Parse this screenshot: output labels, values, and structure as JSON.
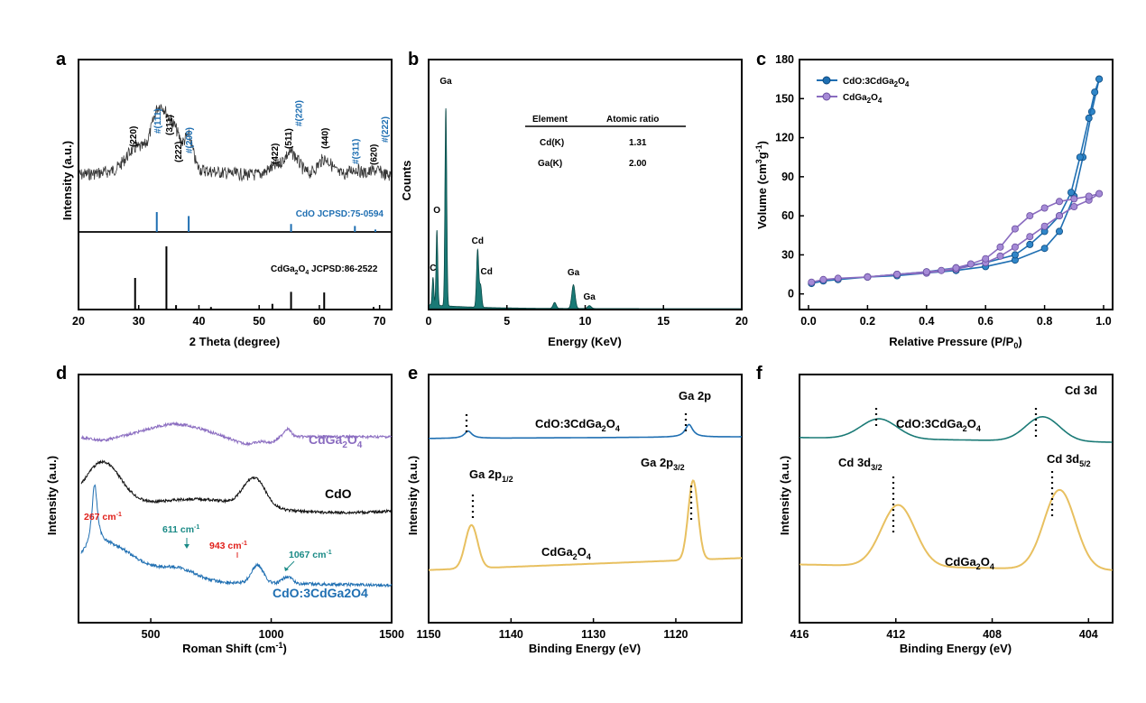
{
  "chart_data": [
    {
      "panel": "a",
      "type": "line",
      "xlabel": "2 Theta (degree)",
      "ylabel": "Intensity (a.u.)",
      "xlim": [
        20,
        72
      ],
      "xticks": [
        20,
        30,
        40,
        50,
        60,
        70
      ],
      "peak_labels": [
        {
          "x": 29,
          "text": "(220)",
          "color": "#000000"
        },
        {
          "x": 33,
          "text": "#(111)",
          "color": "#1f6fb2"
        },
        {
          "x": 35,
          "text": "(311)",
          "color": "#000000"
        },
        {
          "x": 36.5,
          "text": "(222)",
          "color": "#000000"
        },
        {
          "x": 38.3,
          "text": "#(200)",
          "color": "#1f6fb2"
        },
        {
          "x": 52.5,
          "text": "(422)",
          "color": "#000000"
        },
        {
          "x": 54.8,
          "text": "(511)",
          "color": "#000000"
        },
        {
          "x": 56.5,
          "text": "#(220)",
          "color": "#1f6fb2"
        },
        {
          "x": 60.8,
          "text": "(440)",
          "color": "#000000"
        },
        {
          "x": 65.9,
          "text": "#(311)",
          "color": "#1f6fb2"
        },
        {
          "x": 68.9,
          "text": "(620)",
          "color": "#000000"
        },
        {
          "x": 70.8,
          "text": "#(222)",
          "color": "#1f6fb2"
        }
      ],
      "ref_cdo": {
        "label": "CdO JCPSD:75-0594",
        "color": "#1f6fb2",
        "lines": [
          {
            "x": 33.0,
            "h": 1.0
          },
          {
            "x": 38.3,
            "h": 0.8
          },
          {
            "x": 55.3,
            "h": 0.4
          },
          {
            "x": 65.9,
            "h": 0.3
          },
          {
            "x": 69.3,
            "h": 0.12
          }
        ]
      },
      "ref_cdga2o4": {
        "label_main": "CdGa",
        "sub1": "2",
        "mid": "O",
        "sub2": "4",
        "label_tail": " JCPSD:86-2522",
        "color": "#000000",
        "lines": [
          {
            "x": 29.4,
            "h": 0.5
          },
          {
            "x": 34.6,
            "h": 1.0
          },
          {
            "x": 36.2,
            "h": 0.07
          },
          {
            "x": 42.0,
            "h": 0.04
          },
          {
            "x": 52.2,
            "h": 0.09
          },
          {
            "x": 55.3,
            "h": 0.28
          },
          {
            "x": 60.8,
            "h": 0.27
          },
          {
            "x": 69.0,
            "h": 0.04
          }
        ]
      }
    },
    {
      "panel": "b",
      "type": "area",
      "xlabel": "Energy (KeV)",
      "ylabel": "Counts",
      "xlim": [
        0,
        20
      ],
      "xticks": [
        0,
        5,
        10,
        15,
        20
      ],
      "color": "#1a7a76",
      "peaks": [
        {
          "x": 0.28,
          "h": 0.14,
          "label": "C"
        },
        {
          "x": 0.53,
          "h": 0.38,
          "label": "O"
        },
        {
          "x": 1.1,
          "h": 1.0,
          "label": "Ga"
        },
        {
          "x": 3.13,
          "h": 0.29,
          "label": "Cd"
        },
        {
          "x": 3.32,
          "h": 0.11,
          "label": "Cd"
        },
        {
          "x": 8.05,
          "h": 0.03,
          "label": ""
        },
        {
          "x": 9.25,
          "h": 0.12,
          "label": "Ga"
        },
        {
          "x": 10.27,
          "h": 0.015,
          "label": "Ga"
        }
      ],
      "table": {
        "headers": [
          "Element",
          "Atomic ratio"
        ],
        "rows": [
          [
            "Cd(K)",
            "1.31"
          ],
          [
            "Ga(K)",
            "2.00"
          ]
        ]
      }
    },
    {
      "panel": "c",
      "type": "line",
      "xlabel": "Relative Pressure (P/P",
      "xlabel_sub": "0",
      "xlabel_end": ")",
      "ylabel": "Volume (cm",
      "ylabel_sup1": "3",
      "ylabel_mid": "g",
      "ylabel_sup2": "-1",
      "ylabel_end": ")",
      "xlim": [
        0,
        1
      ],
      "ylim": [
        -12,
        180
      ],
      "xticks": [
        "0.0",
        "0.2",
        "0.4",
        "0.6",
        "0.8",
        "1.0"
      ],
      "yticks": [
        "0",
        "30",
        "60",
        "90",
        "120",
        "150",
        "180"
      ],
      "series": [
        {
          "name": "CdO:3CdGa2O4",
          "color": "#1f6fb2",
          "ads": [
            [
              0.01,
              8
            ],
            [
              0.05,
              10
            ],
            [
              0.1,
              11
            ],
            [
              0.2,
              13
            ],
            [
              0.3,
              14
            ],
            [
              0.4,
              16
            ],
            [
              0.5,
              18
            ],
            [
              0.6,
              21
            ],
            [
              0.7,
              26
            ],
            [
              0.8,
              35
            ],
            [
              0.85,
              48
            ],
            [
              0.9,
              75
            ],
            [
              0.93,
              105
            ],
            [
              0.96,
              140
            ],
            [
              0.985,
              165
            ]
          ],
          "des": [
            [
              0.985,
              165
            ],
            [
              0.97,
              155
            ],
            [
              0.95,
              135
            ],
            [
              0.92,
              105
            ],
            [
              0.89,
              78
            ],
            [
              0.85,
              60
            ],
            [
              0.8,
              48
            ],
            [
              0.75,
              38
            ],
            [
              0.7,
              30
            ],
            [
              0.6,
              24
            ],
            [
              0.5,
              20
            ],
            [
              0.4,
              17
            ],
            [
              0.3,
              15
            ],
            [
              0.2,
              13
            ]
          ]
        },
        {
          "name": "CdGa2O4",
          "color": "#8a6cc0",
          "ads": [
            [
              0.01,
              9
            ],
            [
              0.05,
              11
            ],
            [
              0.1,
              12
            ],
            [
              0.2,
              13
            ],
            [
              0.3,
              15
            ],
            [
              0.4,
              16
            ],
            [
              0.5,
              19
            ],
            [
              0.6,
              24
            ],
            [
              0.65,
              29
            ],
            [
              0.7,
              36
            ],
            [
              0.75,
              44
            ],
            [
              0.8,
              52
            ],
            [
              0.85,
              60
            ],
            [
              0.9,
              67
            ],
            [
              0.95,
              72
            ],
            [
              0.985,
              77
            ]
          ],
          "des": [
            [
              0.985,
              77
            ],
            [
              0.95,
              75
            ],
            [
              0.9,
              73
            ],
            [
              0.85,
              71
            ],
            [
              0.8,
              66
            ],
            [
              0.75,
              60
            ],
            [
              0.7,
              50
            ],
            [
              0.65,
              36
            ],
            [
              0.6,
              27
            ],
            [
              0.55,
              23
            ],
            [
              0.5,
              20
            ],
            [
              0.45,
              18
            ],
            [
              0.4,
              17
            ],
            [
              0.3,
              15
            ],
            [
              0.2,
              13
            ]
          ]
        }
      ]
    },
    {
      "panel": "d",
      "type": "line",
      "xlabel": "Roman Shift (cm",
      "xlabel_sup": "-1",
      "xlabel_end": ")",
      "ylabel": "Intensity (a.u.)",
      "xlim": [
        200,
        1500
      ],
      "xticks": [
        "500",
        "1000",
        "1500"
      ],
      "series_labels": {
        "cdga": "CdGa",
        "cdga_sub1": "2",
        "cdga_mid": "O",
        "cdga_sub2": "4",
        "cdo": "CdO",
        "comp": "CdO:3CdGa2O4"
      },
      "colors": {
        "cdga": "#8a6cc0",
        "cdo": "#111111",
        "comp": "#1f6fb2"
      },
      "annotations": [
        {
          "text": "267 cm",
          "sup": "-1",
          "color": "#e0201b"
        },
        {
          "text": "611 cm",
          "sup": "-1",
          "color": "#1a8a86"
        },
        {
          "text": "943 cm",
          "sup": "-1",
          "color": "#e0201b"
        },
        {
          "text": "1067 cm",
          "sup": "-1",
          "color": "#1a8a86"
        }
      ]
    },
    {
      "panel": "e",
      "type": "line",
      "xlabel": "Binding Energy (eV)",
      "ylabel": "Intensity (a.u.)",
      "xlim": [
        1150,
        1112
      ],
      "xticks": [
        "1150",
        "1140",
        "1130",
        "1120"
      ],
      "colors": {
        "comp": "#1f6fb2",
        "cdga": "#e8c060"
      },
      "labels": {
        "top_main": "CdO:3CdGa",
        "top_sub1": "2",
        "top_mid": "O",
        "top_sub2": "4",
        "bottom_main": "CdGa",
        "bottom_sub1": "2",
        "bottom_mid": "O",
        "bottom_sub2": "4",
        "ga2p": "Ga 2p",
        "p12": "Ga 2p",
        "p12_sub": "1/2",
        "p32": "Ga 2p",
        "p32_sub": "3/2"
      }
    },
    {
      "panel": "f",
      "type": "line",
      "xlabel": "Binding Energy (eV)",
      "ylabel": "Intensity (a.u.)",
      "xlim": [
        416,
        403
      ],
      "xticks": [
        "416",
        "412",
        "408",
        "404"
      ],
      "colors": {
        "comp": "#1a7a76",
        "cdga": "#e8c060"
      },
      "labels": {
        "top_main": "CdO:3CdGa",
        "top_sub1": "2",
        "top_mid": "O",
        "top_sub2": "4",
        "bottom_main": "CdGa",
        "bottom_sub1": "2",
        "bottom_mid": "O",
        "bottom_sub2": "4",
        "cd3d": "Cd 3d",
        "d32": "Cd 3d",
        "d32_sub": "3/2",
        "d52": "Cd 3d",
        "d52_sub": "5/2"
      }
    }
  ]
}
